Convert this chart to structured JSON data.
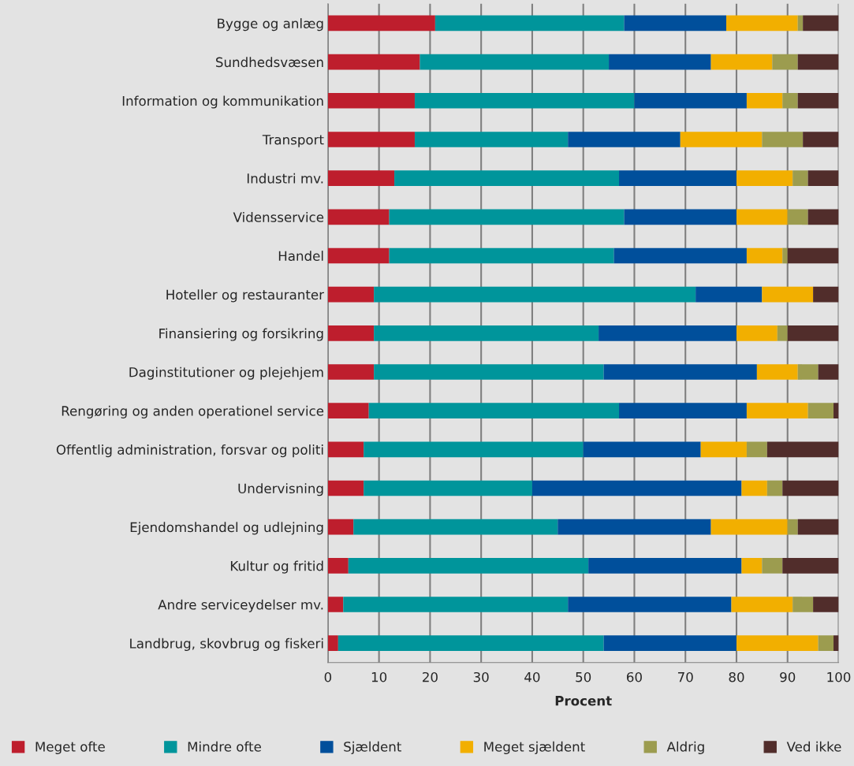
{
  "chart_data": {
    "type": "bar",
    "orientation": "horizontal",
    "stacked": true,
    "xlabel": "Procent",
    "categories": [
      "Bygge og anlæg",
      "Sundhedsvæsen",
      "Information og kommunikation",
      "Transport",
      "Industri mv.",
      "Vidensservice",
      "Handel",
      "Hoteller og restauranter",
      "Finansiering og forsikring",
      "Daginstitutioner og plejehjem",
      "Rengøring og anden operationel service",
      "Offentlig administration, forsvar og politi",
      "Undervisning",
      "Ejendomshandel og udlejning",
      "Kultur og fritid",
      "Andre serviceydelser mv.",
      "Landbrug, skovbrug og fiskeri"
    ],
    "series": [
      {
        "name": "Meget ofte",
        "color": "#be1e2d",
        "values": [
          21,
          18,
          17,
          17,
          13,
          12,
          12,
          9,
          9,
          9,
          8,
          7,
          7,
          5,
          4,
          3,
          2
        ]
      },
      {
        "name": "Mindre ofte",
        "color": "#00959b",
        "values": [
          37,
          37,
          43,
          30,
          44,
          46,
          44,
          63,
          44,
          45,
          49,
          43,
          33,
          40,
          47,
          44,
          52
        ]
      },
      {
        "name": "Sjældent",
        "color": "#004f9b",
        "values": [
          20,
          20,
          22,
          22,
          23,
          22,
          26,
          13,
          27,
          30,
          25,
          23,
          41,
          30,
          30,
          32,
          26
        ]
      },
      {
        "name": "Meget sjældent",
        "color": "#f2af00",
        "values": [
          14,
          12,
          7,
          16,
          11,
          10,
          7,
          10,
          8,
          8,
          12,
          9,
          5,
          15,
          4,
          12,
          16
        ]
      },
      {
        "name": "Aldrig",
        "color": "#9c9c4f",
        "values": [
          1,
          5,
          3,
          8,
          3,
          4,
          1,
          0,
          2,
          4,
          5,
          4,
          3,
          2,
          4,
          4,
          3
        ]
      },
      {
        "name": "Ved ikke",
        "color": "#512d2b",
        "values": [
          7,
          8,
          8,
          7,
          6,
          6,
          10,
          5,
          10,
          4,
          1,
          14,
          11,
          8,
          11,
          5,
          1
        ]
      }
    ],
    "xlim": [
      0,
      100
    ],
    "xticks": [
      0,
      10,
      20,
      30,
      40,
      50,
      60,
      70,
      80,
      90,
      100
    ],
    "grid": "x",
    "legend": "bottom"
  }
}
